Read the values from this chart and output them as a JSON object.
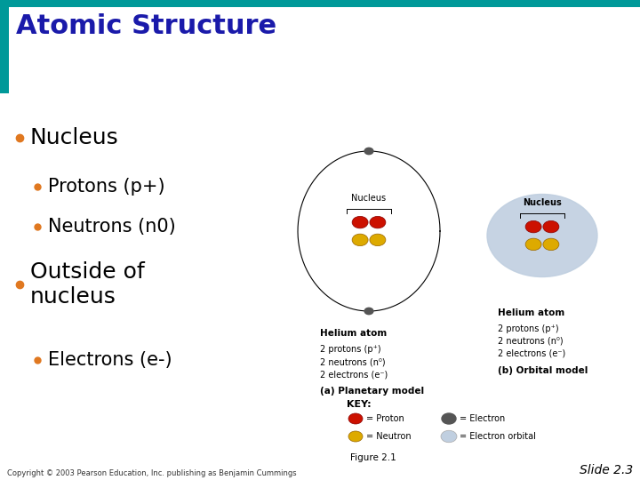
{
  "title": "Atomic Structure",
  "title_color": "#1a1aaa",
  "title_fontsize": 22,
  "bg_color": "#ffffff",
  "header_bar_color": "#009999",
  "sidebar_color": "#009999",
  "bullet_color": "#e07820",
  "bullet1_text": "Nucleus",
  "bullet2_text": "Protons (p+)",
  "bullet3_text": "Neutrons (n0)",
  "bullet4_text": "Outside of\nnucleus",
  "bullet5_text": "Electrons (e-)",
  "figure_caption": "Figure 2.1",
  "copyright_text": "Copyright © 2003 Pearson Education, Inc. publishing as Benjamin Cummings",
  "slide_label": "Slide 2.3",
  "planetary_label": "(a) Planetary model",
  "orbital_label": "(b) Orbital model",
  "helium_label": "Helium atom",
  "proton_line": "2 protons (p⁺)",
  "neutron_line": "2 neutrons (n⁰)",
  "electron_line": "2 electrons (e⁻)",
  "nucleus_label": "Nucleus",
  "key_label": "KEY:",
  "key_proton": "= Proton",
  "key_neutron": "= Neutron",
  "key_electron": "= Electron",
  "key_orbital": "= Electron orbital",
  "proton_color": "#cc1100",
  "neutron_color": "#ddaa00",
  "electron_color": "#555555",
  "orbital_color": "#c0cfe0"
}
